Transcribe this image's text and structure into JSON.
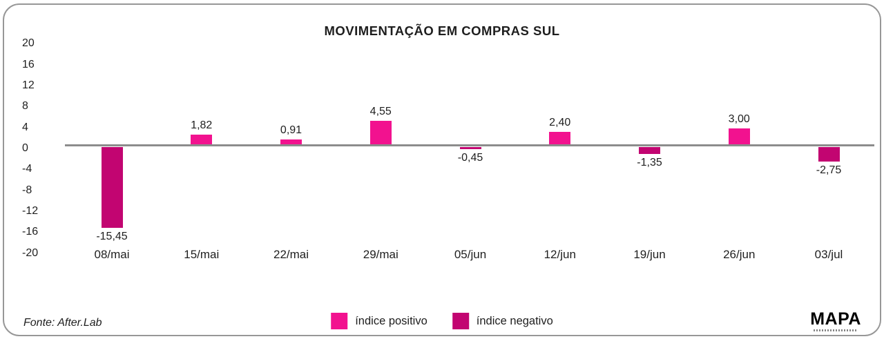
{
  "chart_data": {
    "type": "bar",
    "title": "MOVIMENTAÇÃO EM COMPRAS SUL",
    "categories": [
      "08/mai",
      "15/mai",
      "22/mai",
      "29/mai",
      "05/jun",
      "12/jun",
      "19/jun",
      "26/jun",
      "03/jul"
    ],
    "values": [
      -15.45,
      1.82,
      0.91,
      4.55,
      -0.45,
      2.4,
      -1.35,
      3.0,
      -2.75
    ],
    "value_labels": [
      "-15,45",
      "1,82",
      "0,91",
      "4,55",
      "-0,45",
      "2,40",
      "-1,35",
      "3,00",
      "-2,75"
    ],
    "y_ticks": [
      20,
      16,
      12,
      8,
      4,
      0,
      -4,
      -8,
      -12,
      -16,
      -20
    ],
    "ylim": [
      -20,
      20
    ],
    "grid": false,
    "xlabel": "",
    "ylabel": "",
    "colors": {
      "positive": "#F2128F",
      "negative": "#C20571",
      "axis": "#8c8c8c"
    },
    "legend": [
      {
        "label": "índice positivo",
        "color": "#F2128F"
      },
      {
        "label": "índice negativo",
        "color": "#C20571"
      }
    ],
    "legend_position": "bottom-center"
  },
  "footer": {
    "source": "Fonte: After.Lab",
    "logo": "MAPA"
  }
}
